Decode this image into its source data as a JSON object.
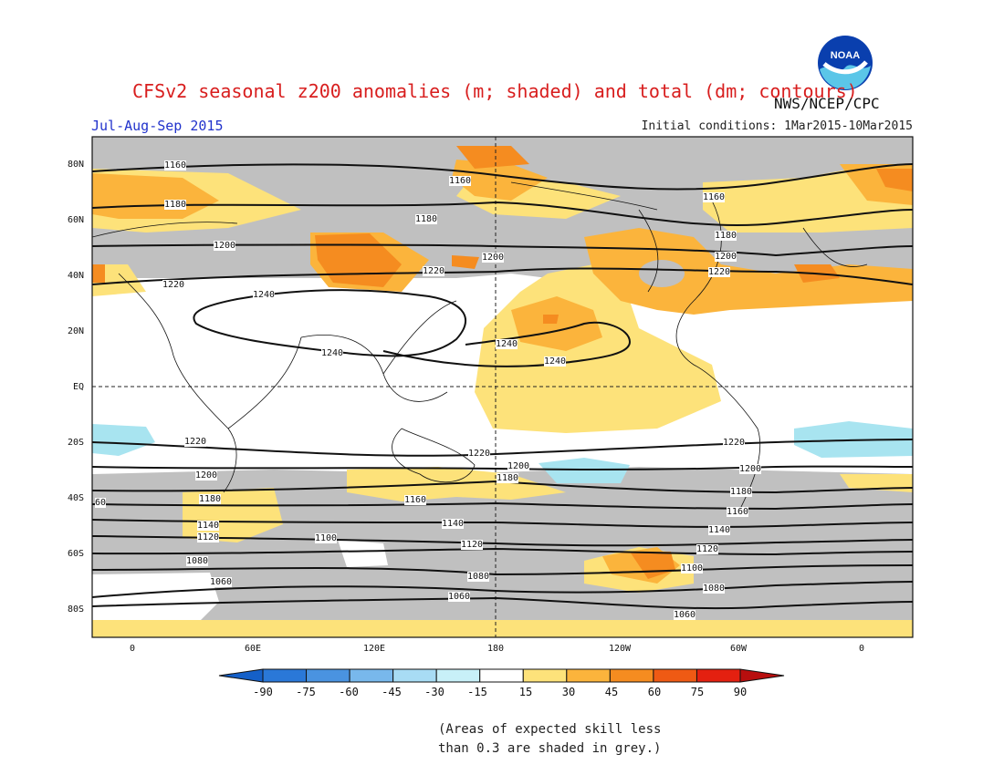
{
  "header": {
    "title": "CFSv2 seasonal z200 anomalies (m; shaded) and total (dm; contours)",
    "agency": "NWS/NCEP/CPC",
    "season": "Jul-Aug-Sep 2015",
    "initial_conditions": "Initial conditions: 1Mar2015-10Mar2015",
    "logo_text": "NOAA"
  },
  "map": {
    "lat_labels": [
      "80N",
      "60N",
      "40N",
      "20N",
      "EQ",
      "20S",
      "40S",
      "60S",
      "80S"
    ],
    "lon_labels": [
      "0",
      "60E",
      "120E",
      "180",
      "120W",
      "60W",
      "0"
    ],
    "contour_labels": [
      "1060",
      "1080",
      "1100",
      "1120",
      "1140",
      "1160",
      "1180",
      "1200",
      "1220",
      "1240",
      "60"
    ]
  },
  "colorbar": {
    "ticks": [
      "-90",
      "-75",
      "-60",
      "-45",
      "-30",
      "-15",
      "15",
      "30",
      "45",
      "60",
      "75",
      "90"
    ],
    "colors": [
      "#1560c8",
      "#2a78d8",
      "#4a93e0",
      "#78b8ec",
      "#a8dcf4",
      "#c8f0f8",
      "#ffffff",
      "#fde27a",
      "#fbb43c",
      "#f58c20",
      "#ef5a14",
      "#e42010",
      "#b80e0e"
    ]
  },
  "legend_note": {
    "line1": "(Areas of expected skill less",
    "line2": "than 0.3 are shaded in grey.)"
  },
  "style": {
    "anomaly_light_orange": "#fde27a",
    "anomaly_orange": "#fbb43c",
    "anomaly_dark_orange": "#f58c20",
    "anomaly_red_orange": "#ef5a14",
    "anomaly_light_blue": "#a8e4f0",
    "low_skill_grey": "#c0c0c0"
  }
}
